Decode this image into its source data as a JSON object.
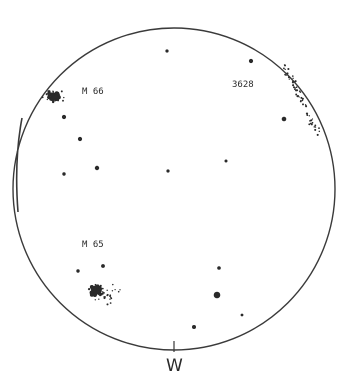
{
  "projection": {
    "outline_color": "#3a3a3a",
    "dot_color": "#2a2a2a",
    "background_color": "#ffffff"
  },
  "labels": {
    "cluster_upper_left": "M 66",
    "cluster_lower_left": "M 65",
    "cluster_upper_right": "3628",
    "direction": "W"
  }
}
